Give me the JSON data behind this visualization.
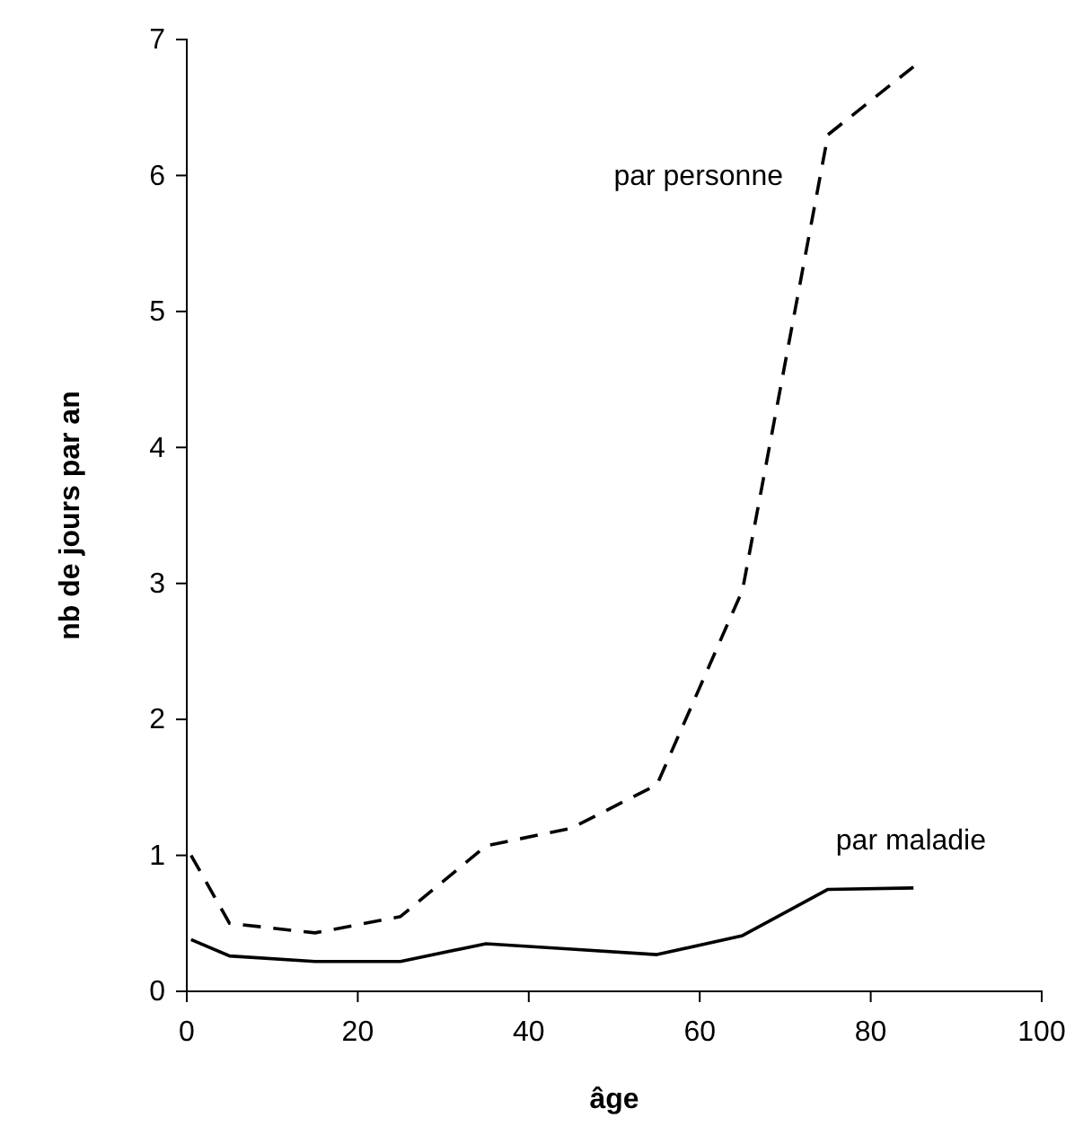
{
  "chart_data": {
    "type": "line",
    "xlabel": "âge",
    "ylabel": "nb de jours par an",
    "xlim": [
      0,
      100
    ],
    "xticks": [
      0,
      20,
      40,
      60,
      80,
      100
    ],
    "ylim": [
      0,
      7
    ],
    "yticks": [
      0,
      1,
      2,
      3,
      4,
      5,
      6,
      7
    ],
    "x": [
      0.5,
      5,
      15,
      25,
      35,
      45,
      55,
      65,
      75,
      85
    ],
    "series": [
      {
        "name": "par personne",
        "color": "#000000",
        "line_style": "dashed",
        "values": [
          1.0,
          0.5,
          0.43,
          0.55,
          1.07,
          1.2,
          1.52,
          2.95,
          6.3,
          6.8
        ]
      },
      {
        "name": "par maladie",
        "color": "#000000",
        "line_style": "solid",
        "values": [
          0.38,
          0.26,
          0.22,
          0.22,
          0.35,
          0.31,
          0.27,
          0.41,
          0.75,
          0.76
        ]
      }
    ],
    "marker": "none"
  }
}
